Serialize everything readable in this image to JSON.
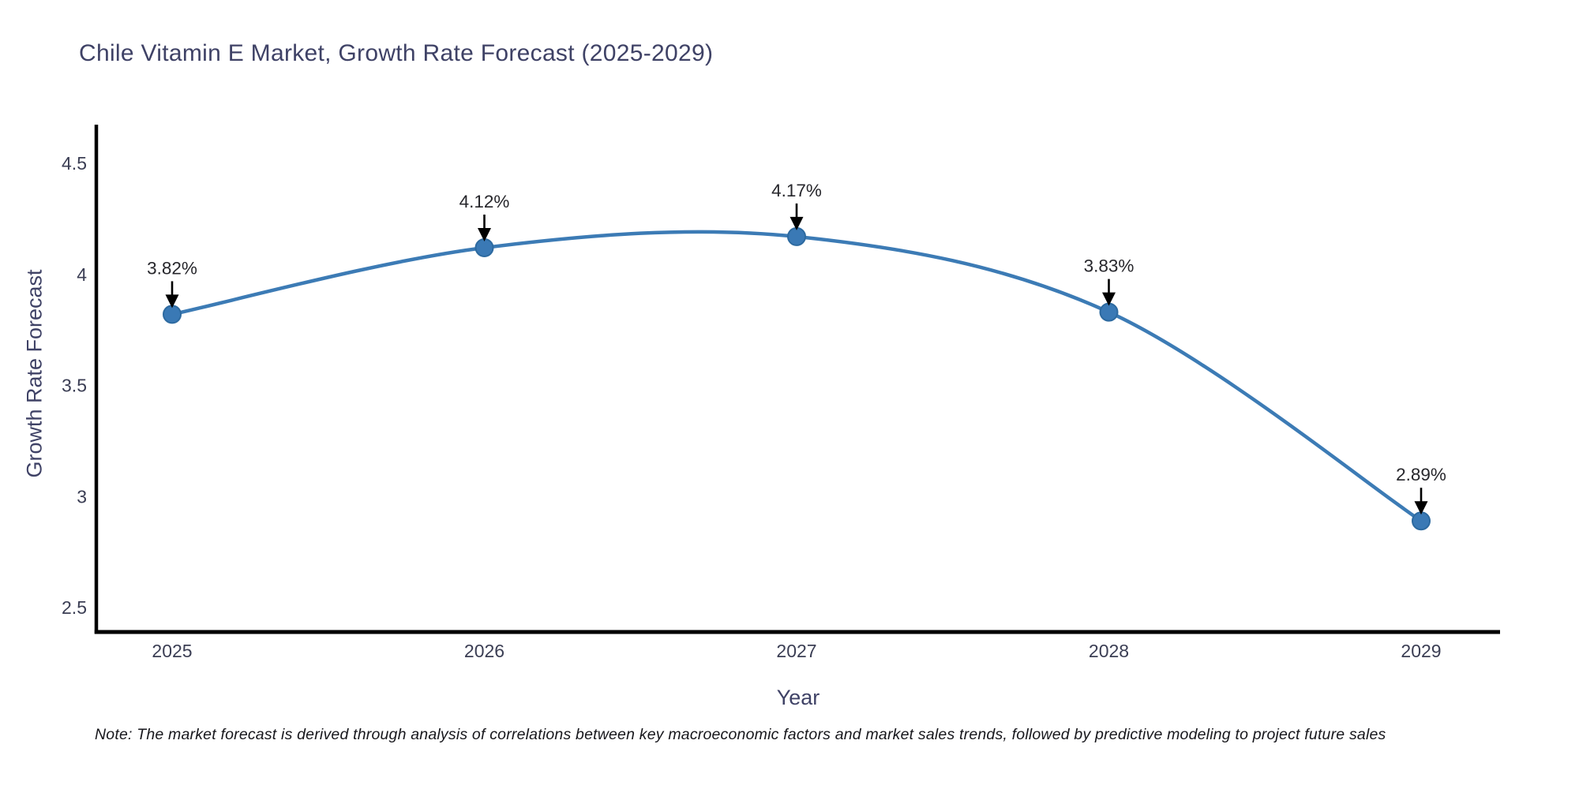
{
  "title": "Chile Vitamin E Market, Growth Rate Forecast (2025-2029)",
  "note": "Note: The market forecast is derived through analysis of correlations between key macroeconomic factors and market sales trends, followed by predictive modeling to project future sales",
  "chart_data": {
    "type": "line",
    "title": "Chile Vitamin E Market, Growth Rate Forecast (2025-2029)",
    "xlabel": "Year",
    "ylabel": "Growth Rate Forecast",
    "x": [
      "2025",
      "2026",
      "2027",
      "2028",
      "2029"
    ],
    "values": [
      3.82,
      4.12,
      4.17,
      3.83,
      2.89
    ],
    "point_labels": [
      "3.82%",
      "4.12%",
      "4.17%",
      "3.83%",
      "2.89%"
    ],
    "yticks": [
      2.5,
      3,
      3.5,
      4,
      4.5
    ],
    "ytick_labels": [
      "2.5",
      "3",
      "3.5",
      "4",
      "4.5"
    ],
    "ylim": [
      2.39,
      4.67
    ],
    "grid": false,
    "legend": "none",
    "smoothing": "spline",
    "line_color": "#3c7bb5",
    "marker_color": "#3a79b5",
    "marker_edge_color": "#2d6aa0",
    "annotation_arrow_color": "#000000",
    "label_color": "#26262b",
    "tick_color": "#3b3e54",
    "spine_color": "#000000"
  }
}
